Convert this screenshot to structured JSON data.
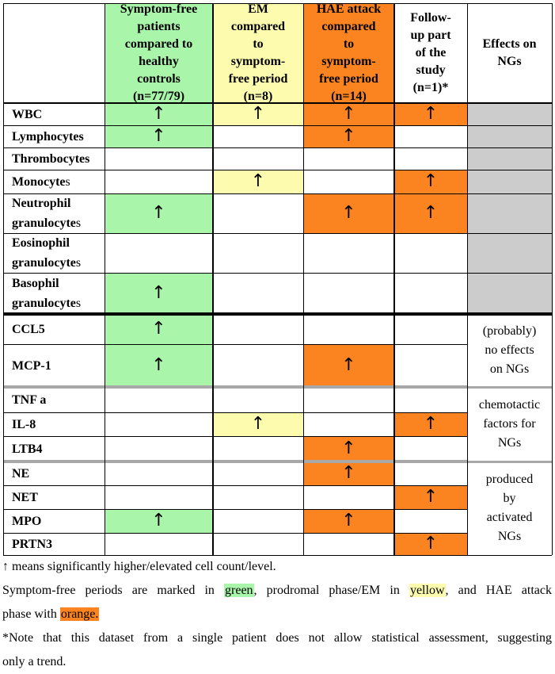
{
  "colors": {
    "green": "#a9f5a9",
    "yellow": "#fdfbae",
    "orange": "#fb8420",
    "gray": "#cccccc"
  },
  "arrow_symbol": "↑",
  "headers": {
    "col1": [
      "Symptom-free",
      "patients",
      "compared to",
      "healthy",
      "controls",
      "(n=77/79)"
    ],
    "col2": [
      "EM",
      "compared",
      "to",
      "symptom-",
      "free period",
      "(n=8)"
    ],
    "col3": [
      "HAE attack",
      "compared",
      "to",
      "symptom-",
      "free period",
      "(n=14)"
    ],
    "col4": [
      "Follow-",
      "up part",
      "of the",
      "study",
      "(n=1)*"
    ],
    "col5": [
      "Effects on",
      "NGs"
    ]
  },
  "rows": [
    {
      "label": "WBC",
      "label_tail": "",
      "values": [
        "up",
        "up",
        "up",
        "up"
      ]
    },
    {
      "label": "Lymphocytes",
      "label_tail": "",
      "values": [
        "up",
        "",
        "up",
        ""
      ]
    },
    {
      "label": "Thrombocytes",
      "label_tail": "",
      "values": [
        "",
        "",
        "",
        ""
      ]
    },
    {
      "label": "Monocyte",
      "label_tail": "s",
      "values": [
        "",
        "up",
        "",
        "up"
      ]
    },
    {
      "label": "Neutrophil\ngranulocyte",
      "label_tail": "s",
      "values": [
        "up",
        "",
        "up",
        "up"
      ]
    },
    {
      "label": "Eosinophil\ngranulocyte",
      "label_tail": "s",
      "values": [
        "",
        "",
        "",
        ""
      ]
    },
    {
      "label": "Basophil\ngranulocyte",
      "label_tail": "s",
      "values": [
        "up",
        "",
        "",
        ""
      ]
    },
    {
      "label": "CCL5",
      "label_tail": "",
      "values": [
        "up",
        "",
        "",
        ""
      ]
    },
    {
      "label": "MCP-1",
      "label_tail": "",
      "values": [
        "up",
        "",
        "up",
        ""
      ]
    },
    {
      "label": "TNF a",
      "label_tail": "",
      "values": [
        "",
        "",
        "",
        ""
      ]
    },
    {
      "label": "IL-8",
      "label_tail": "",
      "values": [
        "",
        "up",
        "",
        "up"
      ]
    },
    {
      "label": "LTB4",
      "label_tail": "",
      "values": [
        "",
        "",
        "up",
        ""
      ]
    },
    {
      "label": "NE",
      "label_tail": "",
      "values": [
        "",
        "",
        "up",
        ""
      ]
    },
    {
      "label": "NET",
      "label_tail": "",
      "values": [
        "",
        "",
        "",
        "up"
      ]
    },
    {
      "label": "MPO",
      "label_tail": "",
      "values": [
        "up",
        "",
        "up",
        ""
      ]
    },
    {
      "label": "PRTN3",
      "label_tail": "",
      "values": [
        "",
        "",
        "",
        "up"
      ]
    }
  ],
  "effects": {
    "group1": [
      "(probably)",
      "no effects",
      "on NGs"
    ],
    "group2": [
      "chemotactic",
      "factors for",
      "NGs"
    ],
    "group3": [
      "produced",
      "by",
      "activated",
      "NGs"
    ]
  },
  "notes": {
    "line1": "↑ means significantly higher/elevated cell count/level.",
    "line2_prefix": "Symptom-free periods are marked in",
    "green_word": "green",
    "line2_mid": ", prodromal phase/EM in",
    "yellow_word": "yellow",
    "line2_suffix": ", and HAE attack",
    "line3_prefix": "phase with",
    "orange_word": "orange.",
    "line4": "*Note that this dataset from a single patient does not allow statistical assessment, suggesting",
    "line5": "only a trend."
  }
}
